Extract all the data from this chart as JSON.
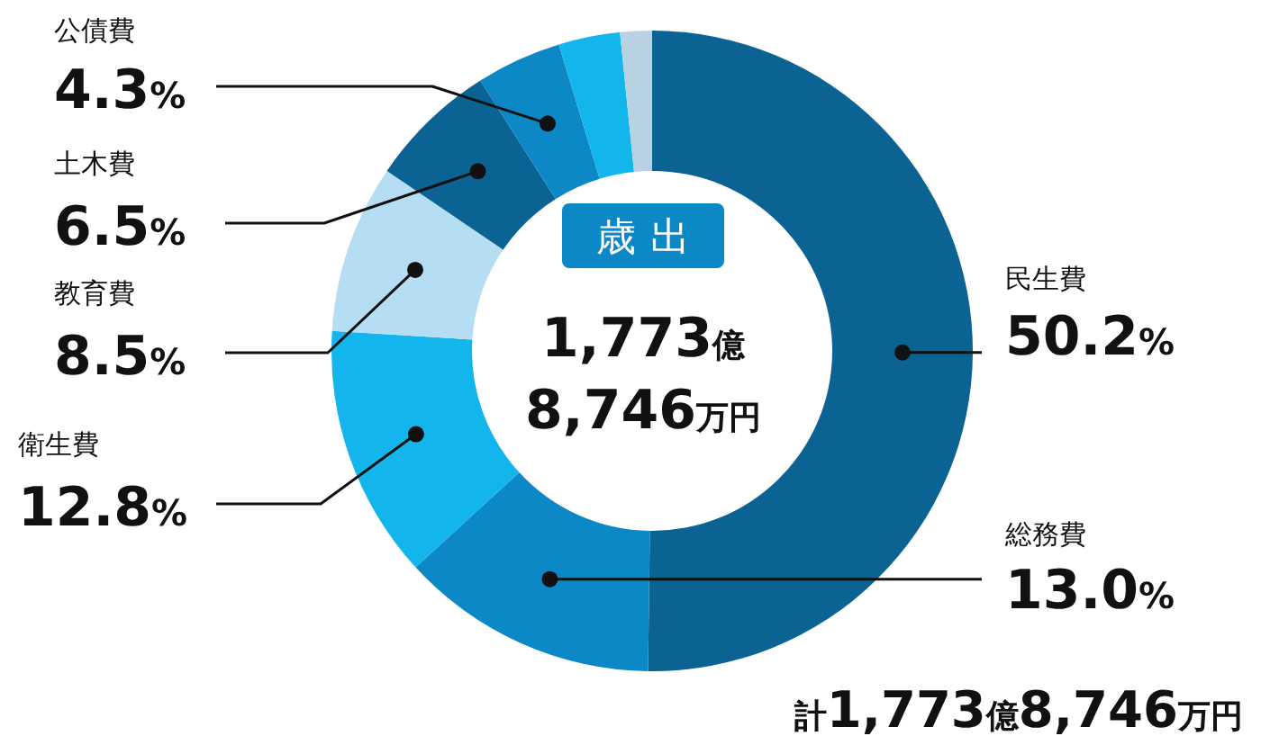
{
  "chart_data": {
    "type": "donut",
    "categories": [
      "民生費",
      "総務費",
      "衛生費",
      "教育費",
      "土木費",
      "公債費",
      null,
      null
    ],
    "values": [
      50.2,
      13.0,
      12.8,
      8.5,
      6.5,
      4.3,
      3.1,
      1.6
    ],
    "value_labels": [
      "50.2%",
      "13.0%",
      "12.8%",
      "8.5%",
      "6.5%",
      "4.3%",
      null,
      null
    ],
    "colors": [
      "#0b6393",
      "#0d88c6",
      "#12b5ec",
      "#b5def5",
      "#0b6393",
      "#0d88c6",
      "#12b5ec",
      "#b8d2e4"
    ],
    "annotations": [
      "歳出",
      "1,773億",
      "8,746万円",
      "計1,773億8,746万円"
    ],
    "legend": false
  }
}
